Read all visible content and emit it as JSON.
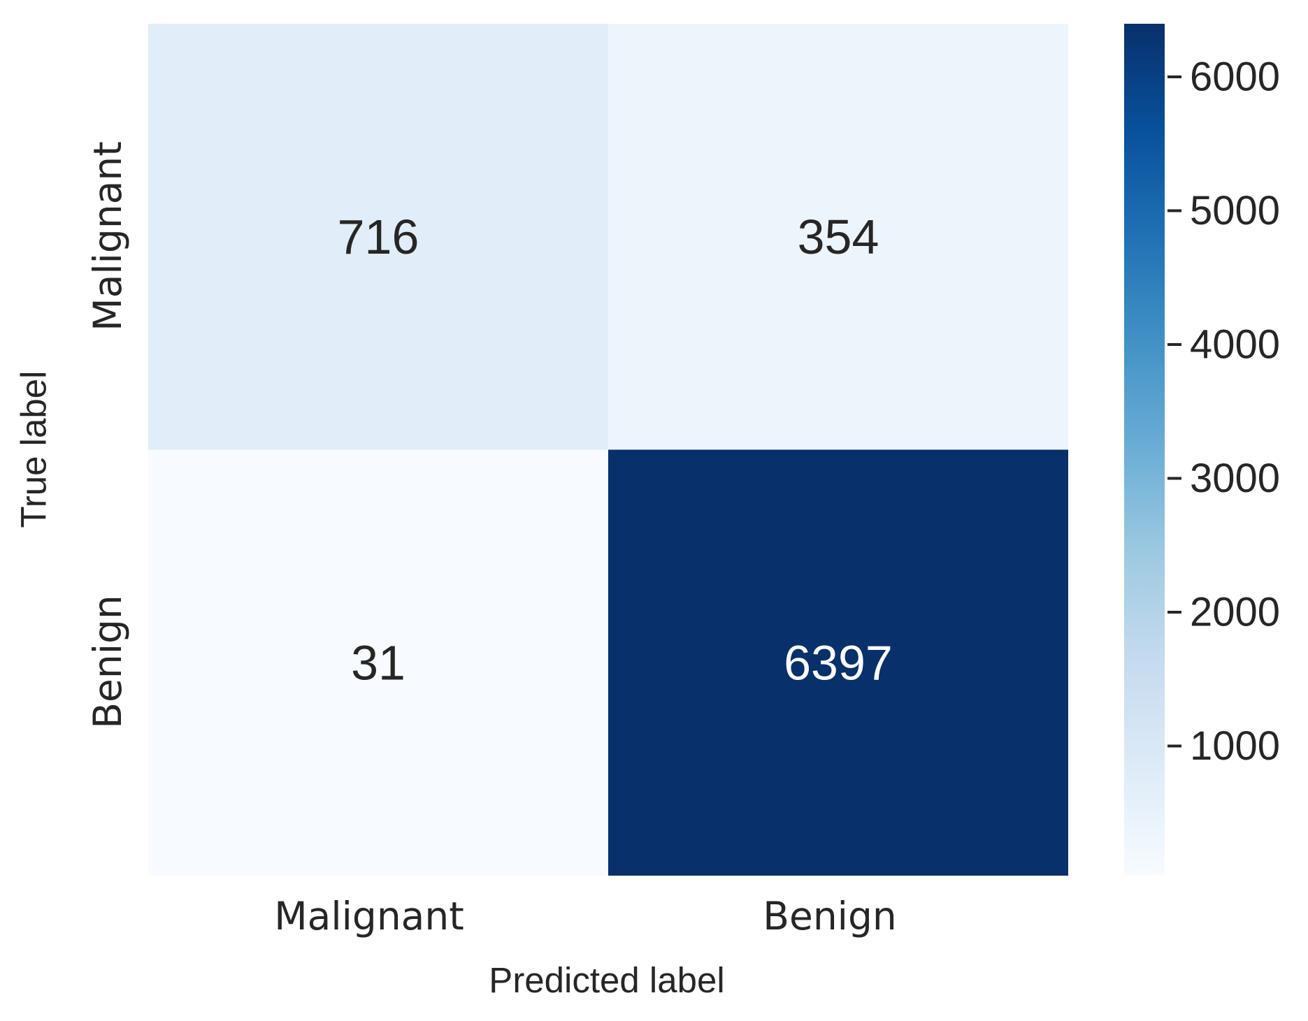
{
  "chart_data": {
    "type": "heatmap",
    "x_tick_labels": [
      "Malignant",
      "Benign"
    ],
    "y_tick_labels": [
      "Malignant",
      "Benign"
    ],
    "values": [
      [
        716,
        354
      ],
      [
        31,
        6397
      ]
    ],
    "xlabel": "Predicted label",
    "ylabel": "True label",
    "colormap": "Blues",
    "colorbar": {
      "ticks": [
        1000,
        2000,
        3000,
        4000,
        5000,
        6000
      ],
      "min": 31,
      "max": 6397
    }
  }
}
